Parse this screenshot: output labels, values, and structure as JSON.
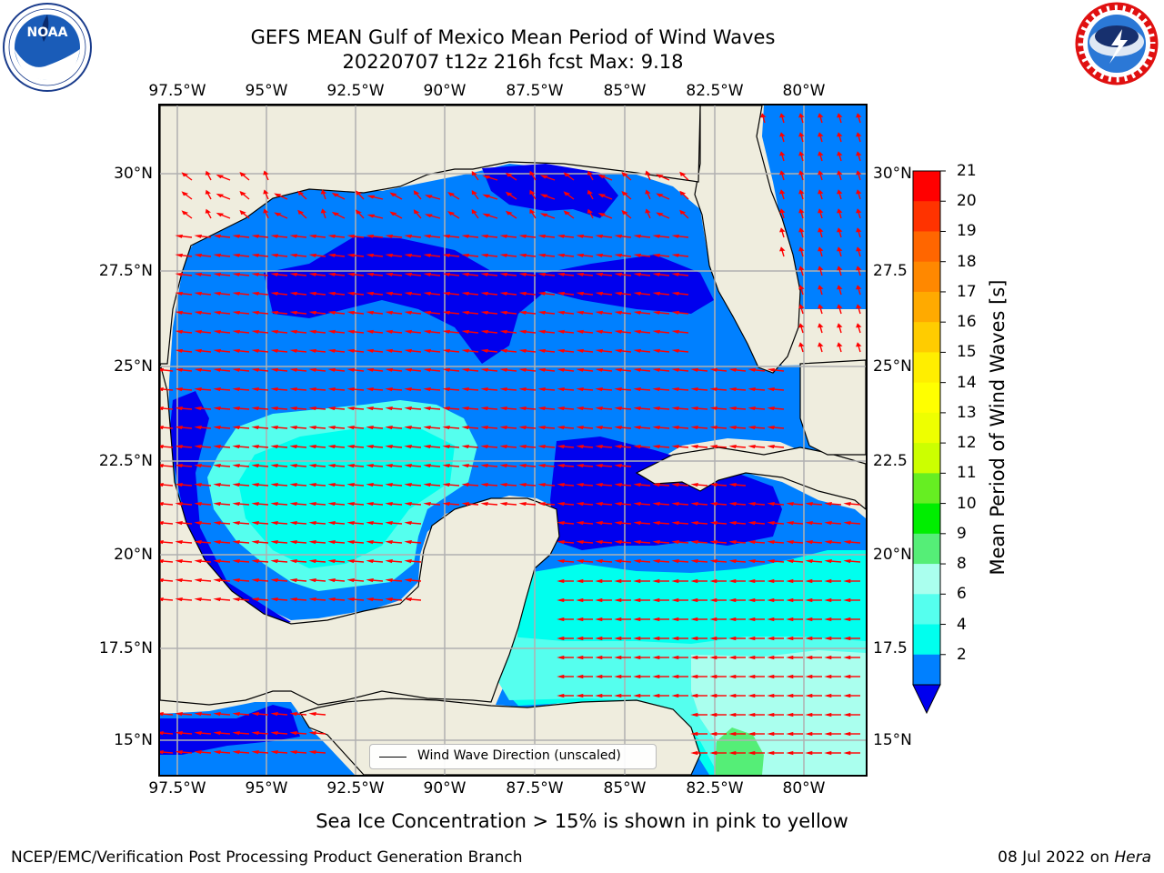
{
  "header": {
    "title_line1": "GEFS MEAN Gulf of Mexico Mean Period of Wind Waves",
    "title_line2": "20220707 t12z 216h fcst   Max: 9.18"
  },
  "logos": {
    "left": {
      "text": "NOAA",
      "ring_text": "NATIONAL OCEANIC AND ATMOSPHERIC ADMINISTRATION · U.S. DEPARTMENT OF COMMERCE"
    },
    "right": {
      "ring_text": "NATIONAL WEATHER SERVICE"
    }
  },
  "axes": {
    "lon_labels": [
      "97.5°W",
      "95°W",
      "92.5°W",
      "90°W",
      "87.5°W",
      "85°W",
      "82.5°W",
      "80°W"
    ],
    "lat_labels": [
      "30°N",
      "27.5°N",
      "25°N",
      "22.5°N",
      "20°N",
      "17.5°N",
      "15°N"
    ],
    "lat_labels_right": [
      "30°N",
      "27.5",
      "25°N",
      "22.5",
      "20°N",
      "17.5",
      "15°N"
    ]
  },
  "colorbar": {
    "title": "Mean Period of Wind Waves [s]",
    "ticks": [
      "21",
      "20",
      "19",
      "18",
      "17",
      "16",
      "15",
      "14",
      "13",
      "12",
      "11",
      "10",
      "9",
      "8",
      "6",
      "4",
      "2"
    ],
    "colors": [
      "#ff0000",
      "#ff3300",
      "#ff6600",
      "#ff8800",
      "#ffaa00",
      "#ffcc00",
      "#ffee00",
      "#ffff00",
      "#eeff00",
      "#ccff00",
      "#66ee22",
      "#00ee00",
      "#55ee77",
      "#aaffee",
      "#55ffee",
      "#00ffee",
      "#0080ff"
    ],
    "extend_color": "#0000ee"
  },
  "legend": {
    "label": "Wind Wave Direction (unscaled)"
  },
  "map_colors": {
    "land": "#efedde",
    "ocean_2_4": "#0080ff",
    "under_2": "#0000ee",
    "band_4_6": "#00ffee",
    "band_6_8": "#55ffee",
    "band_8_9": "#aaffee",
    "band_9_10": "#55ee77",
    "arrows": "#ff0000"
  },
  "footer": {
    "note": "Sea Ice Concentration > 15% is shown in pink to yellow",
    "left": "NCEP/EMC/Verification Post Processing Product Generation Branch",
    "right_date": "08 Jul 2022 on ",
    "right_host": "Hera"
  }
}
